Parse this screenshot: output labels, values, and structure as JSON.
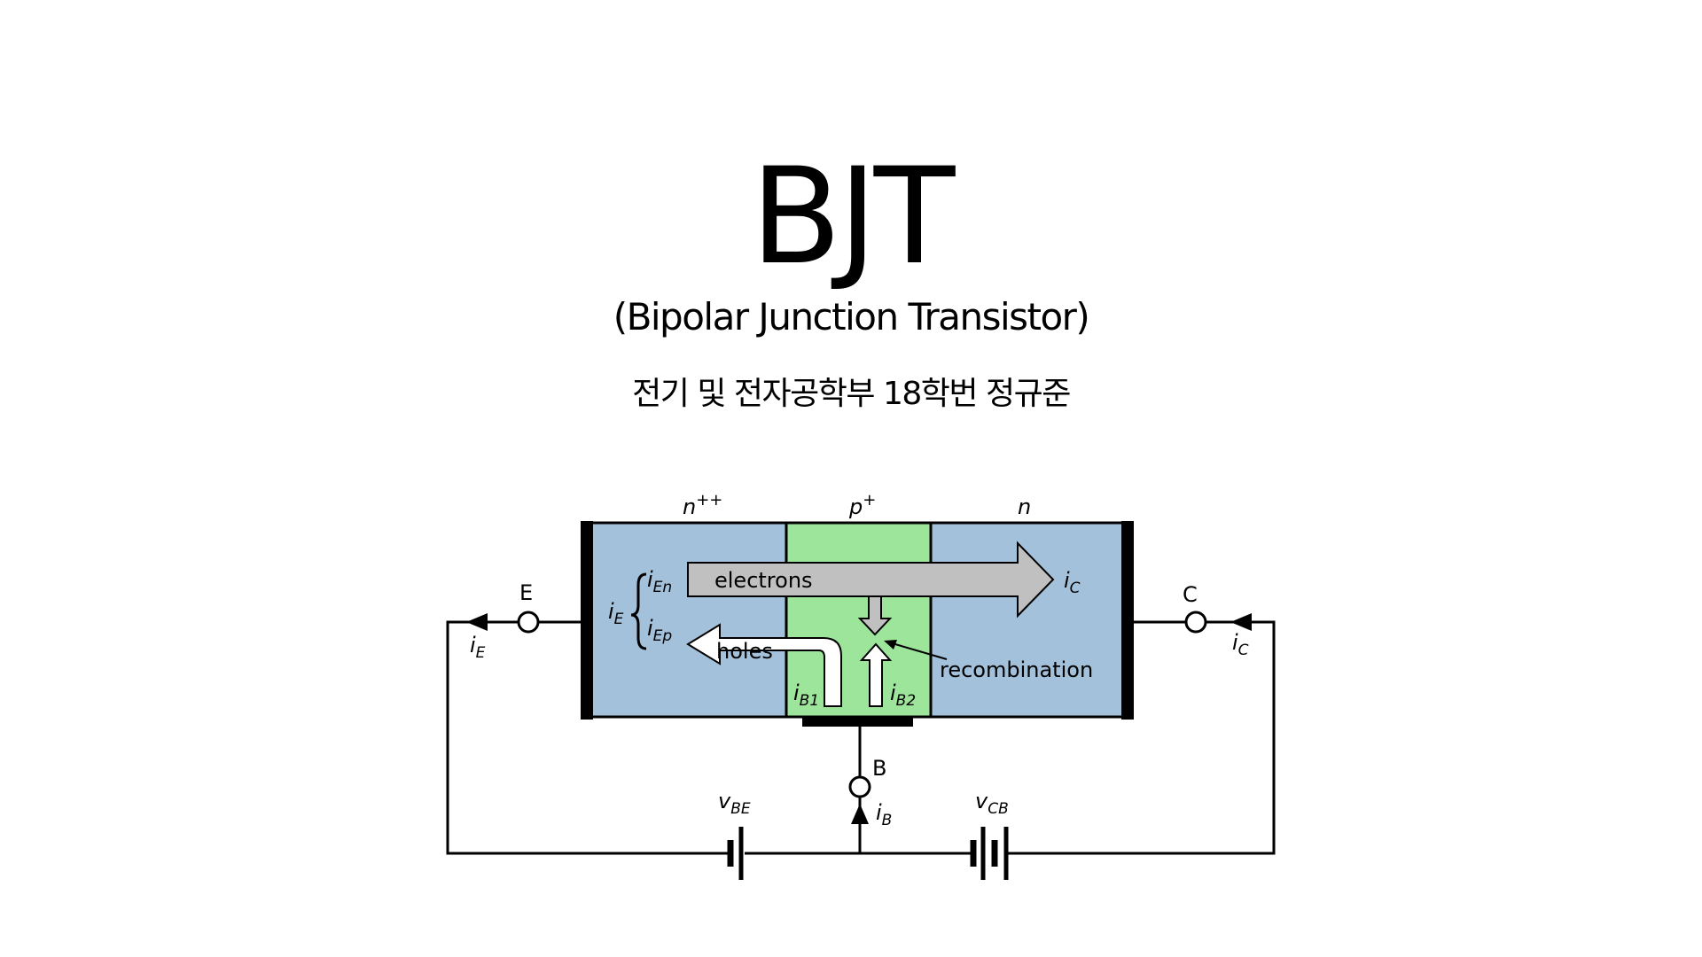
{
  "slide": {
    "title": "BJT",
    "subtitle": "(Bipolar Junction Transistor)",
    "author": "전기 및 전자공학부 18학번 정규준"
  },
  "diagram": {
    "regions": {
      "emitter": {
        "label": "n",
        "sup": "++",
        "color": "#a3c1da"
      },
      "base": {
        "label": "p",
        "sup": "+",
        "color": "#9de59a"
      },
      "collector": {
        "label": "n",
        "color": "#a3c1da"
      }
    },
    "flows": {
      "electrons": "electrons",
      "holes": "holes",
      "recombination": "recombination",
      "electrons_color": "#c0c0c0",
      "holes_color": "#ffffff"
    },
    "terminals": {
      "emitter": "E",
      "collector": "C",
      "base": "B"
    },
    "currents": {
      "iE": {
        "main": "i",
        "sub": "E"
      },
      "iEn": {
        "main": "i",
        "sub": "En"
      },
      "iEp": {
        "main": "i",
        "sub": "Ep"
      },
      "iC_inner": {
        "main": "i",
        "sub": "C"
      },
      "iC_outer": {
        "main": "i",
        "sub": "C"
      },
      "iE_outer": {
        "main": "i",
        "sub": "E"
      },
      "iB1": {
        "main": "i",
        "sub": "B1"
      },
      "iB2": {
        "main": "i",
        "sub": "B2"
      },
      "iB": {
        "main": "i",
        "sub": "B"
      }
    },
    "sources": {
      "vBE": {
        "main": "v",
        "sub": "BE"
      },
      "vCB": {
        "main": "v",
        "sub": "CB"
      }
    }
  }
}
